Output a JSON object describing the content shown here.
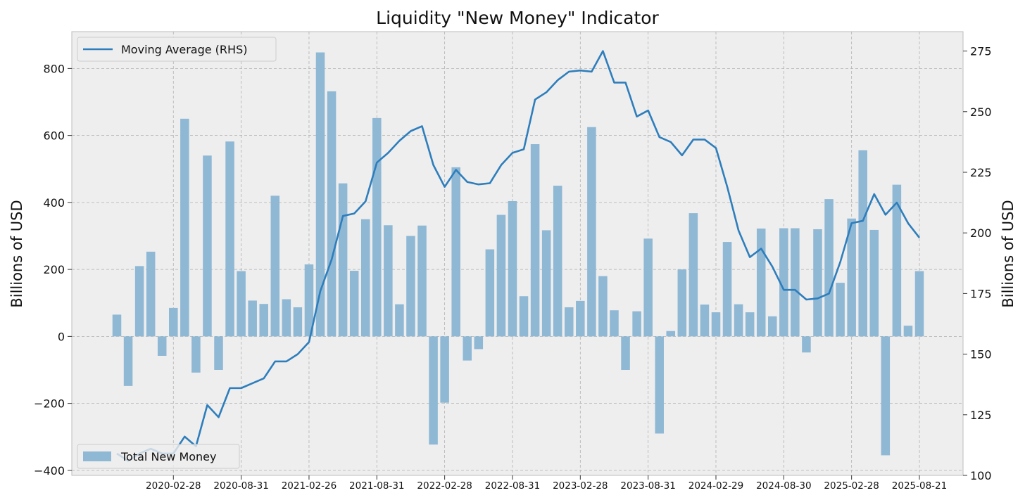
{
  "chart_data": {
    "type": "bar+line",
    "title": "Liquidity \"New Money\" Indicator",
    "ylabel_left": "Billions of USD",
    "ylabel_right": "Billions of USD",
    "ylim_left": [
      -415,
      910
    ],
    "ylim_right": [
      100,
      283
    ],
    "yticks_left": [
      -400,
      -200,
      0,
      200,
      400,
      600,
      800
    ],
    "yticks_left_labels": [
      "−400",
      "−200",
      "0",
      "200",
      "400",
      "600",
      "800"
    ],
    "yticks_right": [
      100,
      125,
      150,
      175,
      200,
      225,
      250,
      275
    ],
    "xtick_labels": [
      "2020-02-28",
      "2020-08-31",
      "2021-02-26",
      "2021-08-31",
      "2022-02-28",
      "2022-08-31",
      "2023-02-28",
      "2023-08-31",
      "2024-02-29",
      "2024-08-30",
      "2025-02-28",
      "2025-08-21"
    ],
    "xtick_indices": [
      5,
      11,
      17,
      23,
      29,
      35,
      41,
      47,
      53,
      59,
      65,
      71
    ],
    "bar_series": {
      "name": "Total New Money",
      "color": "#8fb8d5",
      "values": [
        65,
        -148,
        210,
        253,
        -58,
        85,
        650,
        -108,
        540,
        -100,
        582,
        195,
        107,
        97,
        420,
        111,
        87,
        215,
        848,
        732,
        457,
        196,
        350,
        652,
        332,
        96,
        300,
        331,
        -323,
        -198,
        505,
        -72,
        -38,
        260,
        363,
        404,
        120,
        574,
        317,
        450,
        87,
        106,
        625,
        180,
        78,
        -100,
        75,
        292,
        -290,
        16,
        200,
        368,
        95,
        72,
        282,
        96,
        72,
        322,
        60,
        323,
        323,
        -48,
        320,
        410,
        160,
        352,
        556,
        318,
        -355,
        453,
        32,
        195
      ]
    },
    "line_series": {
      "name": "Moving Average (RHS)",
      "color": "#2e7ebc",
      "values": [
        109,
        106,
        109,
        111,
        109,
        109,
        116,
        112,
        129,
        124,
        136,
        136,
        138,
        140,
        147,
        147,
        150,
        155,
        176,
        189,
        207,
        208,
        213,
        229,
        233,
        238,
        242,
        244,
        228,
        219,
        226,
        221,
        220,
        220.5,
        228,
        233,
        234.5,
        255,
        258,
        263,
        266.5,
        267,
        266.5,
        275,
        262,
        262,
        248,
        250.5,
        239.5,
        237.5,
        232,
        238.5,
        238.5,
        235,
        219,
        201,
        190,
        193.5,
        186,
        176.5,
        176.5,
        172.5,
        173,
        175,
        188,
        204,
        205,
        216,
        207.5,
        212.5,
        204,
        198
      ]
    },
    "legend": [
      {
        "label": "Moving Average (RHS)",
        "position": "top-left"
      },
      {
        "label": "Total New Money",
        "position": "bottom-left"
      }
    ],
    "grid": true
  }
}
